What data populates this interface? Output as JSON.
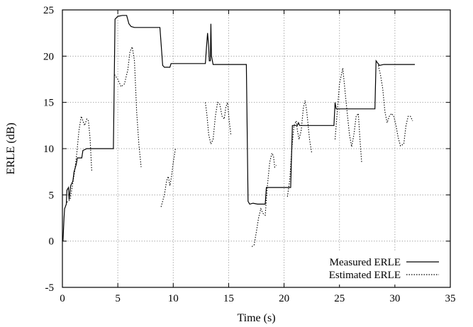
{
  "chart_data": {
    "type": "line",
    "xlabel": "Time (s)",
    "ylabel": "ERLE (dB)",
    "xlim": [
      0,
      35
    ],
    "ylim": [
      -5,
      25
    ],
    "xticks": [
      0,
      5,
      10,
      15,
      20,
      25,
      30,
      35
    ],
    "yticks": [
      -5,
      0,
      5,
      10,
      15,
      20,
      25
    ],
    "grid": true,
    "legend_position": "bottom-right",
    "series": [
      {
        "name": "Measured ERLE",
        "style": "solid",
        "color": "#000000",
        "points": [
          [
            0.05,
            0
          ],
          [
            0.15,
            2.5
          ],
          [
            0.2,
            3.5
          ],
          [
            0.35,
            4.0
          ],
          [
            0.4,
            5.5
          ],
          [
            0.55,
            5.8
          ],
          [
            0.6,
            4.5
          ],
          [
            0.75,
            6.0
          ],
          [
            0.95,
            6.5
          ],
          [
            1.05,
            7.5
          ],
          [
            1.25,
            8.3
          ],
          [
            1.35,
            9.0
          ],
          [
            1.75,
            9.0
          ],
          [
            1.85,
            9.8
          ],
          [
            2.2,
            10.0
          ],
          [
            4.6,
            10.0
          ],
          [
            4.75,
            24.0
          ],
          [
            5.0,
            24.3
          ],
          [
            5.4,
            24.4
          ],
          [
            5.8,
            24.4
          ],
          [
            6.0,
            23.5
          ],
          [
            6.2,
            23.2
          ],
          [
            6.5,
            23.1
          ],
          [
            8.8,
            23.1
          ],
          [
            9.05,
            19.0
          ],
          [
            9.2,
            18.8
          ],
          [
            9.7,
            18.8
          ],
          [
            9.8,
            19.2
          ],
          [
            12.9,
            19.2
          ],
          [
            13.0,
            21.0
          ],
          [
            13.1,
            22.5
          ],
          [
            13.2,
            21.0
          ],
          [
            13.25,
            19.5
          ],
          [
            13.35,
            19.5
          ],
          [
            13.4,
            23.5
          ],
          [
            13.45,
            20.0
          ],
          [
            13.6,
            19.1
          ],
          [
            16.6,
            19.1
          ],
          [
            16.75,
            4.3
          ],
          [
            16.9,
            4.0
          ],
          [
            17.2,
            4.1
          ],
          [
            17.6,
            4.0
          ],
          [
            18.3,
            4.0
          ],
          [
            18.4,
            5.8
          ],
          [
            20.6,
            5.8
          ],
          [
            20.75,
            12.5
          ],
          [
            21.2,
            12.5
          ],
          [
            21.3,
            12.8
          ],
          [
            21.4,
            12.5
          ],
          [
            24.5,
            12.5
          ],
          [
            24.6,
            15.0
          ],
          [
            24.7,
            14.3
          ],
          [
            28.2,
            14.3
          ],
          [
            28.3,
            19.5
          ],
          [
            28.6,
            19.0
          ],
          [
            29.0,
            19.1
          ],
          [
            31.8,
            19.1
          ]
        ]
      },
      {
        "name": "Estimated ERLE",
        "style": "dotted",
        "color": "#000000",
        "segments": [
          [
            [
              0.4,
              4.2
            ],
            [
              0.7,
              4.5
            ],
            [
              0.9,
              6.0
            ],
            [
              1.1,
              7.5
            ],
            [
              1.3,
              9.5
            ],
            [
              1.5,
              12.0
            ],
            [
              1.7,
              13.5
            ],
            [
              1.85,
              13.0
            ],
            [
              2.0,
              12.5
            ],
            [
              2.2,
              13.2
            ],
            [
              2.35,
              13.0
            ],
            [
              2.5,
              11.0
            ],
            [
              2.65,
              7.5
            ]
          ],
          [
            [
              4.7,
              18.0
            ],
            [
              5.0,
              17.5
            ],
            [
              5.3,
              16.7
            ],
            [
              5.6,
              17.0
            ],
            [
              5.9,
              18.5
            ],
            [
              6.1,
              20.5
            ],
            [
              6.3,
              21.0
            ],
            [
              6.5,
              19.5
            ],
            [
              6.7,
              14.0
            ],
            [
              6.9,
              10.5
            ],
            [
              7.1,
              8.0
            ]
          ],
          [
            [
              8.9,
              3.7
            ],
            [
              9.2,
              5.0
            ],
            [
              9.4,
              6.5
            ],
            [
              9.55,
              7.0
            ],
            [
              9.7,
              6.0
            ],
            [
              9.85,
              7.0
            ],
            [
              10.0,
              8.5
            ],
            [
              10.2,
              10.0
            ]
          ],
          [
            [
              12.9,
              15.0
            ],
            [
              13.05,
              13.5
            ],
            [
              13.2,
              11.5
            ],
            [
              13.4,
              10.5
            ],
            [
              13.6,
              11.0
            ],
            [
              13.8,
              13.5
            ],
            [
              14.0,
              15.0
            ],
            [
              14.2,
              14.8
            ],
            [
              14.4,
              13.5
            ],
            [
              14.6,
              13.2
            ],
            [
              14.75,
              14.5
            ],
            [
              14.9,
              15.0
            ],
            [
              15.05,
              13.0
            ],
            [
              15.2,
              11.5
            ]
          ],
          [
            [
              17.1,
              -0.6
            ],
            [
              17.3,
              -0.4
            ],
            [
              17.5,
              1.0
            ],
            [
              17.7,
              2.5
            ],
            [
              17.9,
              3.5
            ],
            [
              18.1,
              3.0
            ],
            [
              18.3,
              2.8
            ],
            [
              18.5,
              6.0
            ],
            [
              18.7,
              8.5
            ],
            [
              18.9,
              9.5
            ],
            [
              19.05,
              9.2
            ],
            [
              19.15,
              8.0
            ],
            [
              19.3,
              8.2
            ]
          ],
          [
            [
              20.3,
              4.8
            ],
            [
              20.5,
              6.5
            ],
            [
              20.7,
              10.0
            ],
            [
              20.9,
              12.5
            ],
            [
              21.1,
              13.0
            ],
            [
              21.2,
              12.0
            ],
            [
              21.35,
              11.0
            ],
            [
              21.55,
              12.0
            ],
            [
              21.75,
              14.5
            ],
            [
              21.9,
              15.2
            ],
            [
              22.05,
              14.0
            ],
            [
              22.3,
              11.0
            ],
            [
              22.5,
              9.5
            ]
          ],
          [
            [
              24.6,
              11.0
            ],
            [
              24.8,
              14.0
            ],
            [
              25.0,
              17.0
            ],
            [
              25.3,
              18.7
            ],
            [
              25.6,
              15.0
            ],
            [
              25.9,
              11.5
            ],
            [
              26.1,
              10.2
            ],
            [
              26.3,
              11.5
            ],
            [
              26.5,
              13.5
            ],
            [
              26.7,
              13.8
            ],
            [
              26.85,
              11.0
            ],
            [
              27.0,
              8.5
            ]
          ],
          [
            [
              28.5,
              19.0
            ],
            [
              28.7,
              18.0
            ],
            [
              28.9,
              16.5
            ],
            [
              29.1,
              14.0
            ],
            [
              29.3,
              12.8
            ],
            [
              29.5,
              13.5
            ],
            [
              29.7,
              13.8
            ],
            [
              29.9,
              13.5
            ],
            [
              30.1,
              12.5
            ],
            [
              30.3,
              11.2
            ],
            [
              30.5,
              10.3
            ],
            [
              30.8,
              10.5
            ],
            [
              31.0,
              12.5
            ],
            [
              31.2,
              13.5
            ],
            [
              31.4,
              13.5
            ],
            [
              31.6,
              13.0
            ]
          ]
        ]
      }
    ]
  }
}
